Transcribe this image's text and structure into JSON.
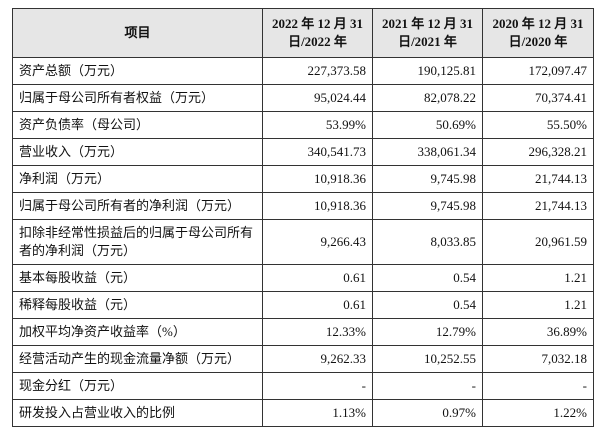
{
  "table": {
    "headers": [
      "项目",
      [
        "2022 年 12 月 31",
        "日/2022 年"
      ],
      [
        "2021 年 12 月 31",
        "日/2021 年"
      ],
      [
        "2020 年 12 月 31",
        "日/2020 年"
      ]
    ],
    "rows": [
      [
        "资产总额（万元）",
        "227,373.58",
        "190,125.81",
        "172,097.47"
      ],
      [
        "归属于母公司所有者权益（万元）",
        "95,024.44",
        "82,078.22",
        "70,374.41"
      ],
      [
        "资产负债率（母公司）",
        "53.99%",
        "50.69%",
        "55.50%"
      ],
      [
        "营业收入（万元）",
        "340,541.73",
        "338,061.34",
        "296,328.21"
      ],
      [
        "净利润（万元）",
        "10,918.36",
        "9,745.98",
        "21,744.13"
      ],
      [
        "归属于母公司所有者的净利润（万元）",
        "10,918.36",
        "9,745.98",
        "21,744.13"
      ],
      [
        "扣除非经常性损益后的归属于母公司所有者的净利润（万元）",
        "9,266.43",
        "8,033.85",
        "20,961.59"
      ],
      [
        "基本每股收益（元）",
        "0.61",
        "0.54",
        "1.21"
      ],
      [
        "稀释每股收益（元）",
        "0.61",
        "0.54",
        "1.21"
      ],
      [
        "加权平均净资产收益率（%）",
        "12.33%",
        "12.79%",
        "36.89%"
      ],
      [
        "经营活动产生的现金流量净额（万元）",
        "9,262.33",
        "10,252.55",
        "7,032.18"
      ],
      [
        "现金分红（万元）",
        "-",
        "-",
        "-"
      ],
      [
        "研发投入占营业收入的比例",
        "1.13%",
        "0.97%",
        "1.22%"
      ]
    ]
  }
}
